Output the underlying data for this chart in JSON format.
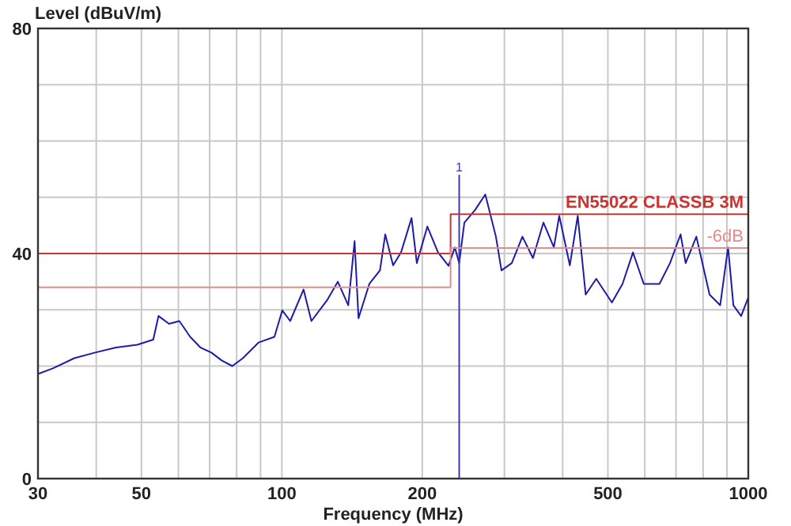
{
  "chart_data": {
    "type": "line",
    "xlabel": "Frequency (MHz)",
    "ylabel": "Level (dBuV/m)",
    "log": "x",
    "grid": true,
    "xlim": [
      30,
      1000
    ],
    "ylim": [
      0,
      80
    ],
    "xticks": [
      30,
      {
        "value": 40,
        "label": null
      },
      50,
      {
        "value": 60,
        "label": null
      },
      {
        "value": 70,
        "label": null
      },
      {
        "value": 80,
        "label": null
      },
      {
        "value": 90,
        "label": null
      },
      100,
      200,
      {
        "value": 300,
        "label": null
      },
      {
        "value": 400,
        "label": null
      },
      500,
      {
        "value": 600,
        "label": null
      },
      {
        "value": 700,
        "label": null
      },
      {
        "value": 800,
        "label": null
      },
      {
        "value": 900,
        "label": null
      },
      1000
    ],
    "yticks": [
      0,
      {
        "value": 10,
        "label": null
      },
      {
        "value": 20,
        "label": null
      },
      {
        "value": 30,
        "label": null
      },
      40,
      {
        "value": 50,
        "label": null
      },
      {
        "value": 60,
        "label": null
      },
      {
        "value": 70,
        "label": null
      },
      80
    ],
    "series": [
      {
        "color": "#1c1ca8",
        "x": [
          30,
          32.3,
          35.9,
          39.8,
          44.1,
          49,
          53,
          54.4,
          57.3,
          60.3,
          63.6,
          66.9,
          70.6,
          74.3,
          78.3,
          82.5,
          89.2,
          96.4,
          100.2,
          104.2,
          111.3,
          115.7,
          125,
          131.8,
          138.8,
          143.2,
          146,
          154,
          162.3,
          166.6,
          173.2,
          180.1,
          189.7,
          194.7,
          205.1,
          216.2,
          227.7,
          234.9,
          240,
          246.2,
          259.4,
          273,
          287.7,
          295.7,
          311.1,
          327.9,
          345.4,
          363.8,
          383,
          393.3,
          414.4,
          430.9,
          448.1,
          472.1,
          510,
          537.5,
          566,
          596.9,
          645,
          679.5,
          715.9,
          734,
          773.9,
          826,
          870.4,
          905,
          929.2,
          965.4,
          1000
        ],
        "values": [
          18.6,
          19.6,
          21.4,
          22.4,
          23.3,
          23.8,
          24.7,
          28.9,
          27.5,
          28,
          25.2,
          23.3,
          22.4,
          21,
          20,
          21.4,
          24.2,
          25.2,
          29.9,
          28,
          33.6,
          28,
          31.7,
          35,
          30.8,
          42.2,
          28.5,
          34.6,
          37,
          43.4,
          37.9,
          40.2,
          46.3,
          38.3,
          44.8,
          40.2,
          37.8,
          41.1,
          38.3,
          45.5,
          47.7,
          50.5,
          43,
          37,
          38.3,
          43,
          39.2,
          45.5,
          41.1,
          46.7,
          37.9,
          46.7,
          32.7,
          35.5,
          31.3,
          34.6,
          40.2,
          34.6,
          34.6,
          38.3,
          43.4,
          38.3,
          43,
          32.7,
          30.8,
          41.1,
          30.8,
          28.9,
          32.2
        ]
      },
      {
        "color": "#3a3aa8",
        "x": [
          240,
          240
        ],
        "values": [
          0,
          54
        ]
      },
      {
        "name": "EN55022 CLASSB 3M",
        "color": "#cc3333",
        "x": [
          30,
          230,
          230,
          1000
        ],
        "values": [
          40,
          40,
          47,
          47
        ]
      },
      {
        "name": "-6dB",
        "color": "#e88a8a",
        "x": [
          30,
          230,
          230,
          1000
        ],
        "values": [
          34,
          34,
          41,
          41
        ]
      }
    ],
    "annotations": [
      {
        "text": "1",
        "x": 240,
        "y": 54
      }
    ]
  }
}
